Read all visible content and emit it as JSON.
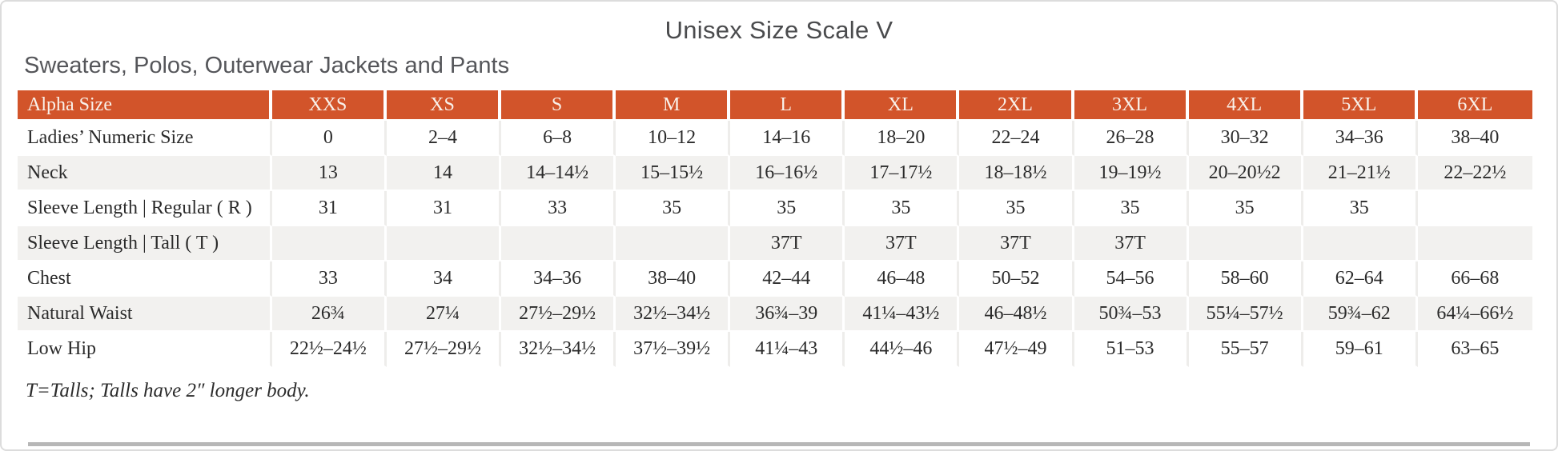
{
  "page": {
    "title": "Unisex Size Scale V",
    "subtitle": "Sweaters, Polos, Outerwear Jackets and Pants",
    "footnote": "T=Talls; Talls have 2″ longer body."
  },
  "colors": {
    "header_bg": "#d2542a",
    "header_text": "#f9f1ea",
    "row_alt_bg": "#f2f1ef",
    "body_text": "#2b2b2b",
    "title_text": "#4a4b4d"
  },
  "table": {
    "header": [
      "Alpha Size",
      "XXS",
      "XS",
      "S",
      "M",
      "L",
      "XL",
      "2XL",
      "3XL",
      "4XL",
      "5XL",
      "6XL"
    ],
    "rows": [
      {
        "label": "Ladies’ Numeric Size",
        "values": [
          "0",
          "2–4",
          "6–8",
          "10–12",
          "14–16",
          "18–20",
          "22–24",
          "26–28",
          "30–32",
          "34–36",
          "38–40"
        ]
      },
      {
        "label": "Neck",
        "values": [
          "13",
          "14",
          "14–14½",
          "15–15½",
          "16–16½",
          "17–17½",
          "18–18½",
          "19–19½",
          "20–20½2",
          "21–21½",
          "22–22½"
        ]
      },
      {
        "label": "Sleeve Length | Regular ( R )",
        "values": [
          "31",
          "31",
          "33",
          "35",
          "35",
          "35",
          "35",
          "35",
          "35",
          "35",
          ""
        ]
      },
      {
        "label": "Sleeve Length | Tall ( T )",
        "values": [
          "",
          "",
          "",
          "",
          "37T",
          "37T",
          "37T",
          "37T",
          "",
          "",
          ""
        ]
      },
      {
        "label": "Chest",
        "values": [
          "33",
          "34",
          "34–36",
          "38–40",
          "42–44",
          "46–48",
          "50–52",
          "54–56",
          "58–60",
          "62–64",
          "66–68"
        ]
      },
      {
        "label": "Natural Waist",
        "values": [
          "26¾",
          "27¼",
          "27½–29½",
          "32½–34½",
          "36¾–39",
          "41¼–43½",
          "46–48½",
          "50¾–53",
          "55¼–57½",
          "59¾–62",
          "64¼–66½"
        ]
      },
      {
        "label": "Low Hip",
        "values": [
          "22½–24½",
          "27½–29½",
          "32½–34½",
          "37½–39½",
          "41¼–43",
          "44½–46",
          "47½–49",
          "51–53",
          "55–57",
          "59–61",
          "63–65"
        ]
      }
    ]
  }
}
